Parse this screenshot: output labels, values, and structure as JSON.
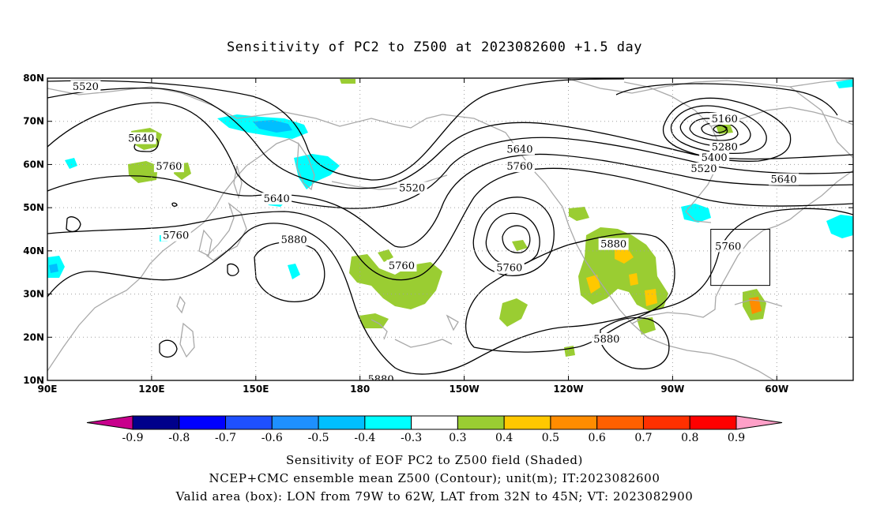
{
  "title": "Sensitivity of PC2 to Z500 at 2023082600 +1.5 day",
  "axes": {
    "lon_labels": [
      "90E",
      "120E",
      "150E",
      "180",
      "150W",
      "120W",
      "90W",
      "60W"
    ],
    "lon_values": [
      90,
      120,
      150,
      180,
      210,
      240,
      270,
      300
    ],
    "lat_labels": [
      "80N",
      "70N",
      "60N",
      "50N",
      "40N",
      "30N",
      "20N",
      "10N"
    ],
    "lat_values": [
      80,
      70,
      60,
      50,
      40,
      30,
      20,
      10
    ],
    "lon_range": [
      90,
      322
    ],
    "lat_range": [
      10,
      80
    ],
    "grid": true
  },
  "contour_labels": [
    {
      "text": "5520",
      "lon": 101,
      "lat": 78
    },
    {
      "text": "5640",
      "lon": 117,
      "lat": 66
    },
    {
      "text": "5760",
      "lon": 125,
      "lat": 59.5
    },
    {
      "text": "5640",
      "lon": 156,
      "lat": 52
    },
    {
      "text": "5760",
      "lon": 127,
      "lat": 43.5
    },
    {
      "text": "5880",
      "lon": 161,
      "lat": 42.5
    },
    {
      "text": "5520",
      "lon": 195,
      "lat": 54.5
    },
    {
      "text": "5760",
      "lon": 192,
      "lat": 36.5
    },
    {
      "text": "5640",
      "lon": 226,
      "lat": 63.5
    },
    {
      "text": "5760",
      "lon": 226,
      "lat": 59.5
    },
    {
      "text": "5760",
      "lon": 223,
      "lat": 36
    },
    {
      "text": "5880",
      "lon": 253,
      "lat": 41.5
    },
    {
      "text": "5880",
      "lon": 251,
      "lat": 19.5
    },
    {
      "text": "5880",
      "lon": 186,
      "lat": 10.2
    },
    {
      "text": "5160",
      "lon": 285,
      "lat": 70.5
    },
    {
      "text": "5280",
      "lon": 285,
      "lat": 64
    },
    {
      "text": "5400",
      "lon": 282,
      "lat": 61.5
    },
    {
      "text": "5520",
      "lon": 279,
      "lat": 59
    },
    {
      "text": "5640",
      "lon": 302,
      "lat": 56.5
    },
    {
      "text": "5760",
      "lon": 286,
      "lat": 41
    }
  ],
  "valid_box": {
    "lon_min": 281,
    "lon_max": 298,
    "lat_min": 32,
    "lat_max": 45
  },
  "colorbar": {
    "labels": [
      "-0.9",
      "-0.8",
      "-0.7",
      "-0.6",
      "-0.5",
      "-0.4",
      "-0.3",
      "0.3",
      "0.4",
      "0.5",
      "0.6",
      "0.7",
      "0.8",
      "0.9"
    ],
    "colors": [
      "#00008b",
      "#0000ff",
      "#1e50ff",
      "#1e90ff",
      "#00bfff",
      "#00ffff",
      "#ffffff",
      "#9acd32",
      "#ffc800",
      "#ff8c00",
      "#ff6000",
      "#ff3000",
      "#ff0000"
    ],
    "low_extend_color": "#c8008c",
    "high_extend_color": "#ffa0c8"
  },
  "colors": {
    "contour": "#000000",
    "coastline": "#a9a9a9",
    "grid": "#a0a0a0"
  },
  "footer": {
    "line1": "Sensitivity of EOF PC2 to Z500 field (Shaded)",
    "line2": "NCEP+CMC ensemble mean Z500 (Contour); unit(m); IT:2023082600",
    "line3": "Valid area (box): LON from 79W to 62W, LAT from 32N to 45N; VT: 2023082900"
  }
}
